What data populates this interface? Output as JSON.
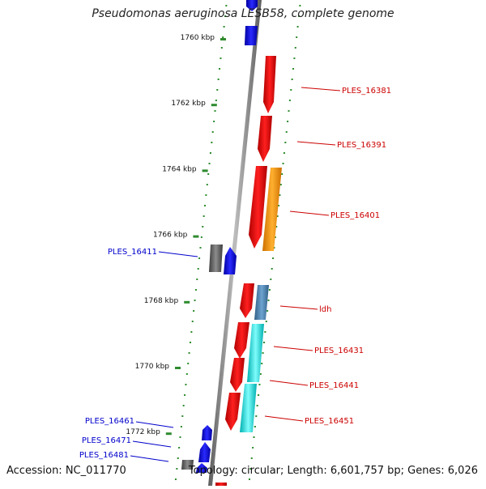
{
  "title": "Pseudomonas aeruginosa LESB58, complete genome",
  "accession": "Accession: NC_011770",
  "topology": "Topology: circular; Length: 6,601,757 bp; Genes: 6,026",
  "colors": {
    "backbone": "#8a8a8a",
    "tick": "#2e8b2e",
    "label_right": "#cc0000",
    "label_left": "#0000cc",
    "red_gene": "#ff0000",
    "blue_gene": "#0000ff",
    "orange_gene": "#ff9900",
    "steel_gene": "#4682b4",
    "cyan_gene": "#00e5e5",
    "gray_gene": "#666666"
  },
  "ticks": [
    {
      "label": "1760 kbp",
      "kbp": 1760
    },
    {
      "label": "1762 kbp",
      "kbp": 1762
    },
    {
      "label": "1764 kbp",
      "kbp": 1764
    },
    {
      "label": "1766 kbp",
      "kbp": 1766
    },
    {
      "label": "1768 kbp",
      "kbp": 1768
    },
    {
      "label": "1770 kbp",
      "kbp": 1770
    },
    {
      "label": "1772 kbp",
      "kbp": 1772
    }
  ],
  "genes": [
    {
      "name": "PLES_16381",
      "side": "right",
      "color": "red_gene"
    },
    {
      "name": "PLES_16391",
      "side": "right",
      "color": "red_gene"
    },
    {
      "name": "PLES_16401",
      "side": "right",
      "color": "red_gene"
    },
    {
      "name": "PLES_16411",
      "side": "left",
      "color": "blue_gene"
    },
    {
      "name": "ldh",
      "side": "right",
      "color": "red_gene"
    },
    {
      "name": "PLES_16431",
      "side": "right",
      "color": "red_gene"
    },
    {
      "name": "PLES_16441",
      "side": "right",
      "color": "red_gene"
    },
    {
      "name": "PLES_16451",
      "side": "right",
      "color": "red_gene"
    },
    {
      "name": "PLES_16461",
      "side": "left",
      "color": "blue_gene"
    },
    {
      "name": "PLES_16471",
      "side": "left",
      "color": "blue_gene"
    },
    {
      "name": "PLES_16481",
      "side": "left",
      "color": "blue_gene"
    }
  ]
}
